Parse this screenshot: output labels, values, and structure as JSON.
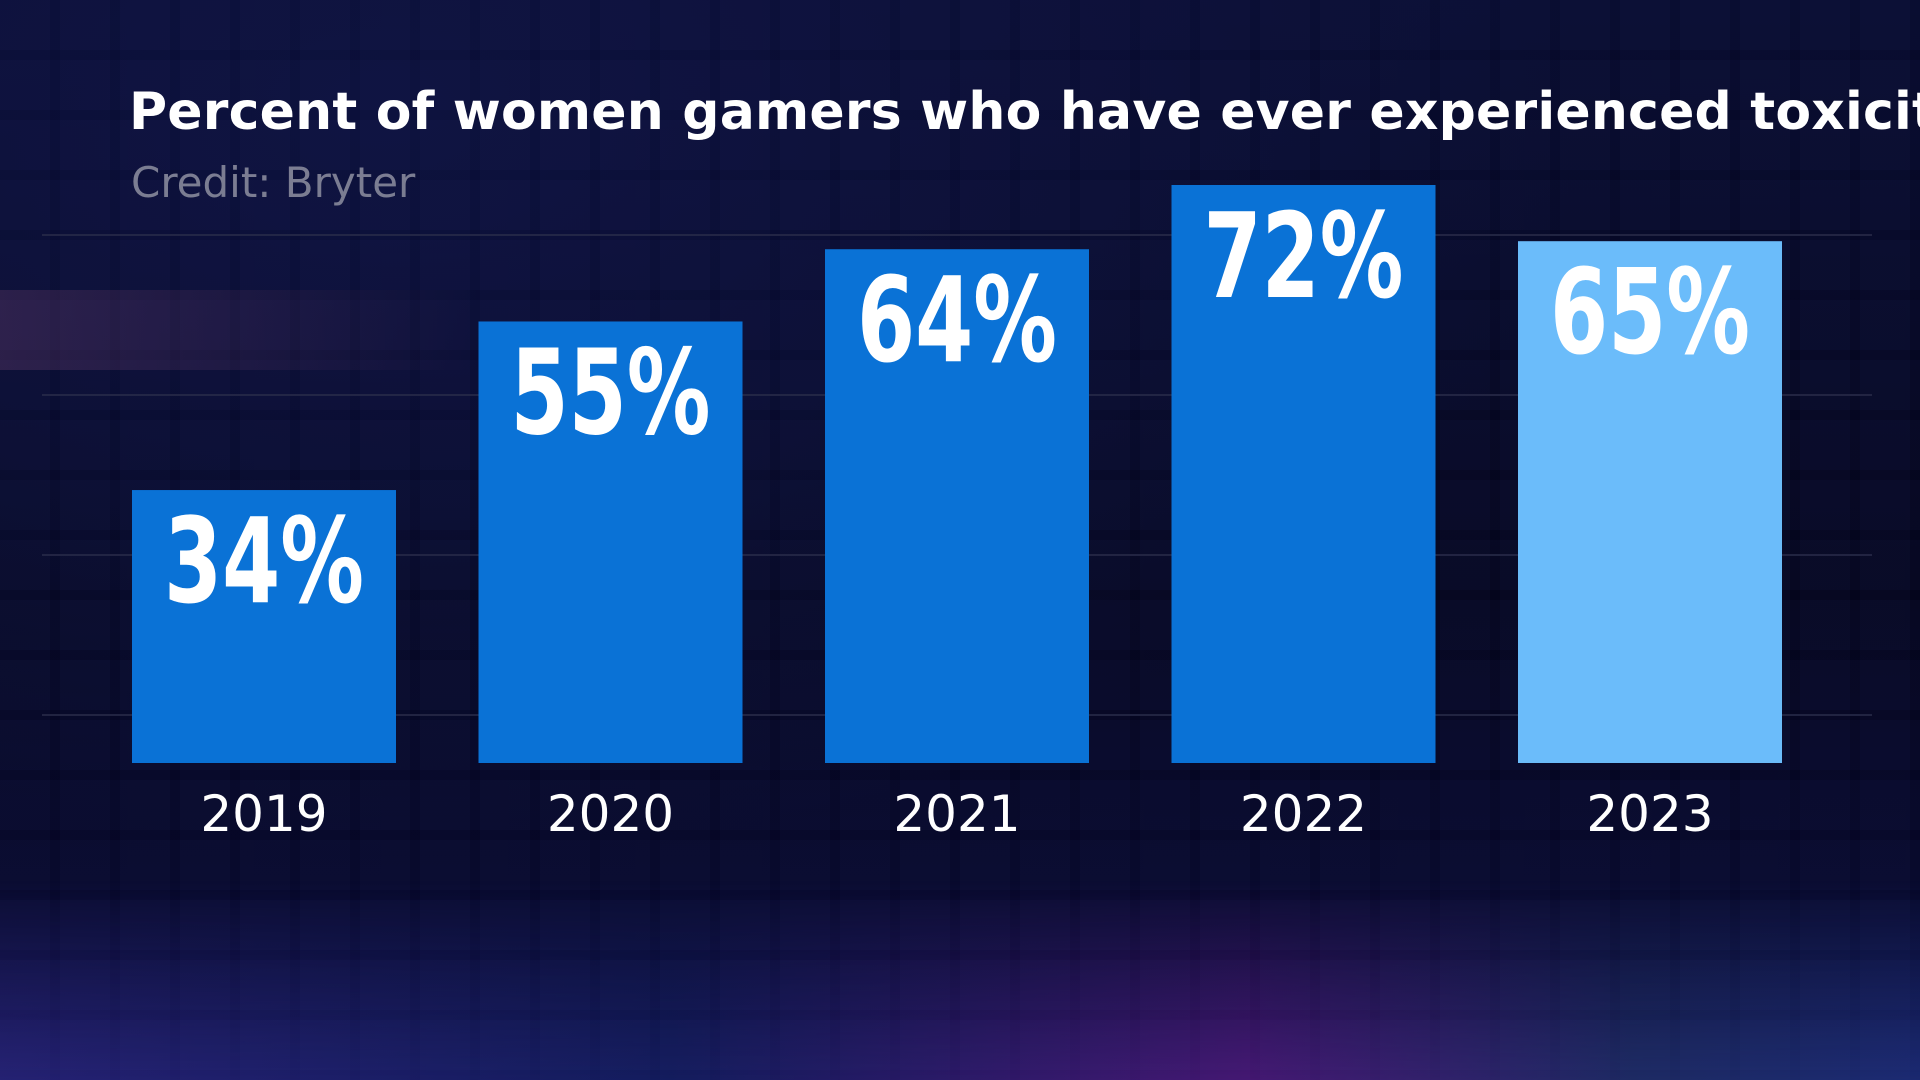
{
  "chart_data": {
    "type": "bar",
    "title": "Percent of women gamers who have ever experienced toxicity",
    "subtitle": "Credit: Bryter",
    "categories": [
      "2019",
      "2020",
      "2021",
      "2022",
      "2023"
    ],
    "values": [
      34,
      55,
      64,
      72,
      65
    ],
    "data_labels": [
      "34%",
      "55%",
      "64%",
      "72%",
      "65%"
    ],
    "ylim": [
      0,
      72
    ],
    "grid": true,
    "xlabel": "",
    "ylabel": "",
    "colors": {
      "bar": "#0a72d6",
      "highlight_bar": "#6bbcfa",
      "label_text": "#ffffff",
      "gridline": "#2a2d4a"
    },
    "highlight_index": 4
  }
}
